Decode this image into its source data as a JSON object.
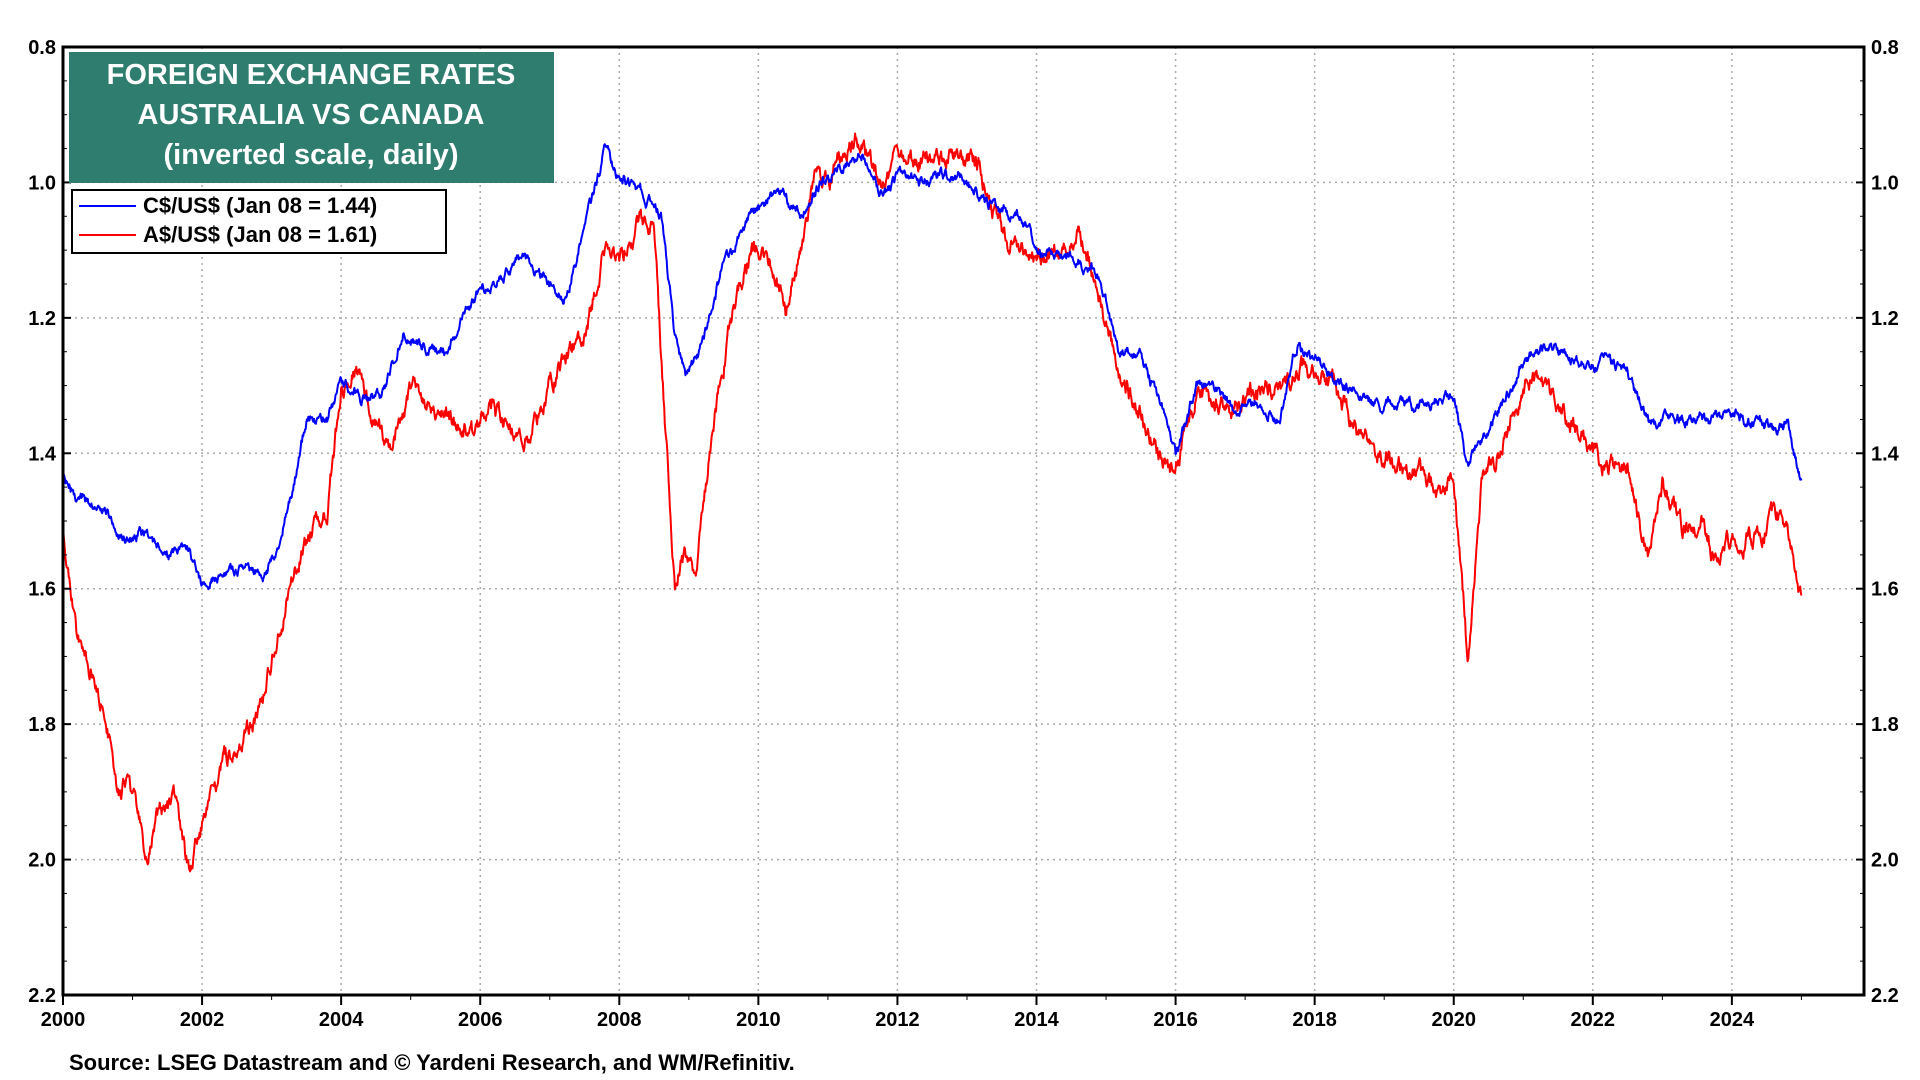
{
  "chart_data": {
    "type": "line",
    "title_lines": [
      "FOREIGN EXCHANGE RATES",
      "AUSTRALIA VS CANADA",
      "(inverted scale, daily)"
    ],
    "xlabel": "",
    "ylabel": "",
    "xlim": [
      2000,
      2025.9
    ],
    "ylim": [
      0.8,
      2.2
    ],
    "y_inverted": true,
    "x_ticks": [
      "2000",
      "2002",
      "2004",
      "2006",
      "2008",
      "2010",
      "2012",
      "2014",
      "2016",
      "2018",
      "2020",
      "2022",
      "2024"
    ],
    "y_ticks": [
      "0.8",
      "1.0",
      "1.2",
      "1.4",
      "1.6",
      "1.8",
      "2.0",
      "2.2"
    ],
    "grid": true,
    "legend_position": "top-left",
    "colors": {
      "title_bg": "#2e7d6e",
      "cad": "#0000ff",
      "aud": "#ff0000",
      "grid": "#aaaaaa"
    },
    "series": [
      {
        "name": "C$/US$ (Jan 08 = 1.44)",
        "color": "#0000ff",
        "x": [
          2000.0,
          2000.3,
          2000.6,
          2000.9,
          2001.2,
          2001.5,
          2001.8,
          2002.0,
          2002.3,
          2002.6,
          2002.9,
          2003.1,
          2003.3,
          2003.5,
          2003.8,
          2004.0,
          2004.3,
          2004.6,
          2004.9,
          2005.2,
          2005.5,
          2005.8,
          2006.0,
          2006.3,
          2006.6,
          2006.9,
          2007.2,
          2007.5,
          2007.8,
          2008.0,
          2008.3,
          2008.6,
          2008.8,
          2008.95,
          2009.2,
          2009.5,
          2009.8,
          2010.0,
          2010.3,
          2010.6,
          2010.9,
          2011.2,
          2011.5,
          2011.8,
          2012.0,
          2012.3,
          2012.6,
          2012.9,
          2013.2,
          2013.5,
          2013.8,
          2014.0,
          2014.3,
          2014.6,
          2014.9,
          2015.2,
          2015.5,
          2015.8,
          2016.0,
          2016.3,
          2016.6,
          2016.9,
          2017.2,
          2017.5,
          2017.75,
          2018.0,
          2018.3,
          2018.6,
          2018.9,
          2019.2,
          2019.5,
          2019.8,
          2020.0,
          2020.2,
          2020.5,
          2020.8,
          2021.0,
          2021.3,
          2021.6,
          2021.9,
          2022.2,
          2022.5,
          2022.8,
          2023.1,
          2023.4,
          2023.7,
          2024.0,
          2024.3,
          2024.6,
          2024.8,
          2025.0
        ],
        "y": [
          1.44,
          1.47,
          1.48,
          1.53,
          1.51,
          1.56,
          1.54,
          1.59,
          1.58,
          1.57,
          1.58,
          1.53,
          1.46,
          1.35,
          1.35,
          1.29,
          1.32,
          1.31,
          1.22,
          1.24,
          1.25,
          1.19,
          1.16,
          1.14,
          1.11,
          1.14,
          1.17,
          1.07,
          0.95,
          0.99,
          1.01,
          1.05,
          1.23,
          1.29,
          1.24,
          1.12,
          1.07,
          1.04,
          1.01,
          1.05,
          1.0,
          0.98,
          0.96,
          1.02,
          0.99,
          1.0,
          0.99,
          0.99,
          1.02,
          1.04,
          1.05,
          1.1,
          1.11,
          1.11,
          1.14,
          1.25,
          1.26,
          1.33,
          1.41,
          1.3,
          1.31,
          1.34,
          1.32,
          1.35,
          1.24,
          1.26,
          1.29,
          1.31,
          1.33,
          1.33,
          1.33,
          1.32,
          1.31,
          1.42,
          1.36,
          1.31,
          1.27,
          1.24,
          1.25,
          1.27,
          1.26,
          1.28,
          1.36,
          1.35,
          1.35,
          1.35,
          1.34,
          1.36,
          1.37,
          1.35,
          1.44
        ]
      },
      {
        "name": "A$/US$ (Jan 08 = 1.61)",
        "color": "#ff0000",
        "x": [
          2000.0,
          2000.2,
          2000.4,
          2000.6,
          2000.8,
          2000.9,
          2001.1,
          2001.2,
          2001.4,
          2001.6,
          2001.8,
          2002.0,
          2002.3,
          2002.6,
          2002.9,
          2003.2,
          2003.5,
          2003.8,
          2004.0,
          2004.2,
          2004.4,
          2004.7,
          2005.0,
          2005.3,
          2005.6,
          2005.9,
          2006.1,
          2006.4,
          2006.7,
          2006.9,
          2007.2,
          2007.5,
          2007.8,
          2008.0,
          2008.3,
          2008.5,
          2008.6,
          2008.8,
          2008.9,
          2009.1,
          2009.3,
          2009.6,
          2009.9,
          2010.2,
          2010.4,
          2010.6,
          2010.8,
          2011.1,
          2011.4,
          2011.6,
          2011.8,
          2012.0,
          2012.4,
          2012.7,
          2013.0,
          2013.2,
          2013.5,
          2013.8,
          2014.0,
          2014.4,
          2014.6,
          2014.9,
          2015.2,
          2015.5,
          2015.8,
          2016.0,
          2016.3,
          2016.6,
          2016.9,
          2017.2,
          2017.5,
          2017.8,
          2018.0,
          2018.3,
          2018.6,
          2018.9,
          2019.2,
          2019.5,
          2019.8,
          2020.0,
          2020.2,
          2020.4,
          2020.7,
          2021.0,
          2021.3,
          2021.5,
          2021.8,
          2022.0,
          2022.3,
          2022.5,
          2022.8,
          2023.0,
          2023.3,
          2023.6,
          2023.8,
          2024.0,
          2024.3,
          2024.6,
          2024.8,
          2025.0
        ],
        "y": [
          1.52,
          1.67,
          1.72,
          1.78,
          1.9,
          1.88,
          1.94,
          2.0,
          1.93,
          1.92,
          2.02,
          1.95,
          1.86,
          1.82,
          1.76,
          1.62,
          1.52,
          1.49,
          1.3,
          1.27,
          1.33,
          1.4,
          1.3,
          1.32,
          1.35,
          1.37,
          1.33,
          1.36,
          1.38,
          1.32,
          1.26,
          1.22,
          1.1,
          1.11,
          1.06,
          1.07,
          1.25,
          1.6,
          1.55,
          1.57,
          1.4,
          1.2,
          1.1,
          1.12,
          1.2,
          1.1,
          1.01,
          0.98,
          0.93,
          0.96,
          1.0,
          0.96,
          0.97,
          0.96,
          0.96,
          0.98,
          1.08,
          1.1,
          1.12,
          1.09,
          1.07,
          1.16,
          1.28,
          1.34,
          1.41,
          1.42,
          1.32,
          1.33,
          1.33,
          1.3,
          1.31,
          1.27,
          1.29,
          1.3,
          1.37,
          1.4,
          1.41,
          1.43,
          1.46,
          1.43,
          1.7,
          1.45,
          1.39,
          1.3,
          1.28,
          1.33,
          1.37,
          1.4,
          1.42,
          1.42,
          1.56,
          1.45,
          1.51,
          1.5,
          1.57,
          1.52,
          1.53,
          1.49,
          1.5,
          1.61
        ]
      }
    ],
    "source": "Source: LSEG Datastream and © Yardeni Research, and WM/Refinitiv."
  }
}
